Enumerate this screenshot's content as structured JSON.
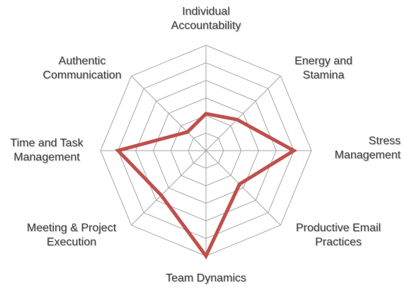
{
  "chart_data": {
    "type": "radar",
    "categories": [
      [
        "Individual",
        "Accountability"
      ],
      [
        "Energy and",
        "Stamina"
      ],
      [
        "Stress",
        "Management"
      ],
      [
        "Productive Email",
        "Practices"
      ],
      [
        "Team Dynamics"
      ],
      [
        "Meeting & Project",
        "Execution"
      ],
      [
        "Time and Task",
        "Management"
      ],
      [
        "Authentic",
        "Communication"
      ]
    ],
    "rmax": 6,
    "rings": 6,
    "grid": true,
    "legend": "none",
    "series": [
      {
        "values": [
          2.1,
          2.5,
          5.0,
          2.7,
          6.0,
          3.6,
          5.0,
          1.5
        ],
        "color": "#C0504D"
      }
    ],
    "grid_color": "#A6A6A6",
    "label_color": "#404040"
  }
}
